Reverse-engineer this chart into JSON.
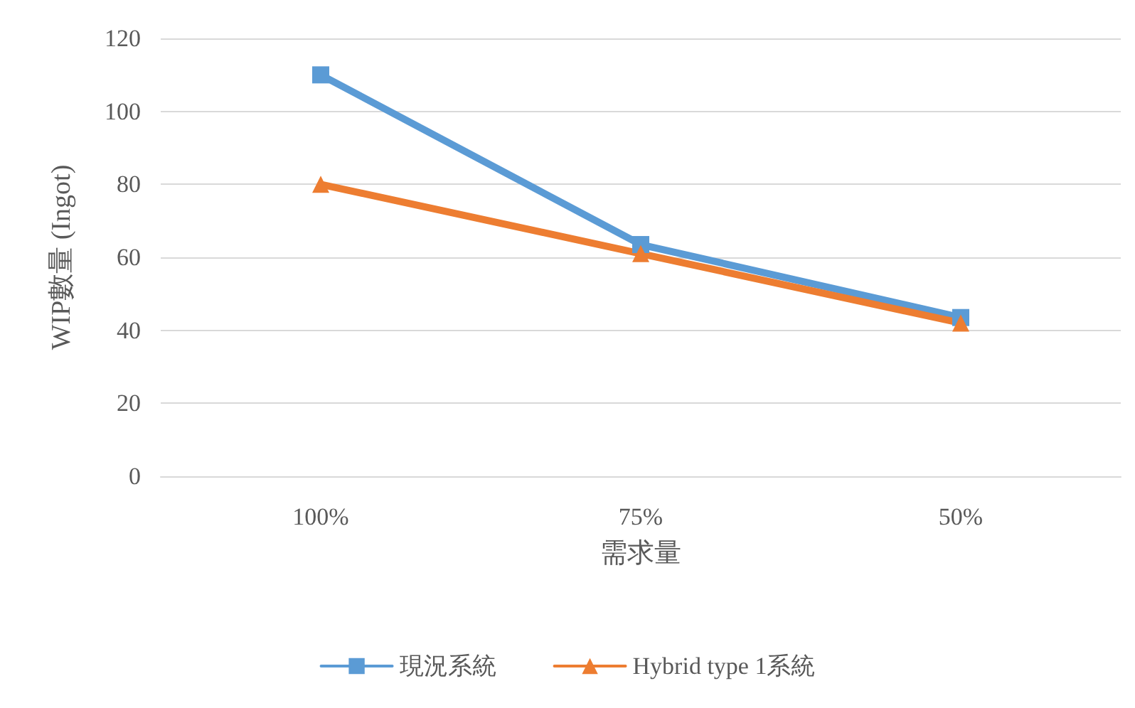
{
  "chart_data": {
    "type": "line",
    "xlabel": "需求量",
    "ylabel": "WIP數量 (Ingot)",
    "categories": [
      "100%",
      "75%",
      "50%"
    ],
    "series": [
      {
        "name": "現況系統",
        "color": "#5b9bd5",
        "values": [
          110,
          63.5,
          43.5
        ],
        "marker": "square"
      },
      {
        "name": "Hybrid type 1系統",
        "color": "#ed7d31",
        "values": [
          80,
          61,
          42
        ],
        "marker": "triangle"
      }
    ],
    "ylim": [
      0,
      120
    ],
    "yticks": [
      0,
      20,
      40,
      60,
      80,
      100,
      120
    ],
    "grid": "y",
    "legend": "bottom",
    "line_style": "solid"
  }
}
